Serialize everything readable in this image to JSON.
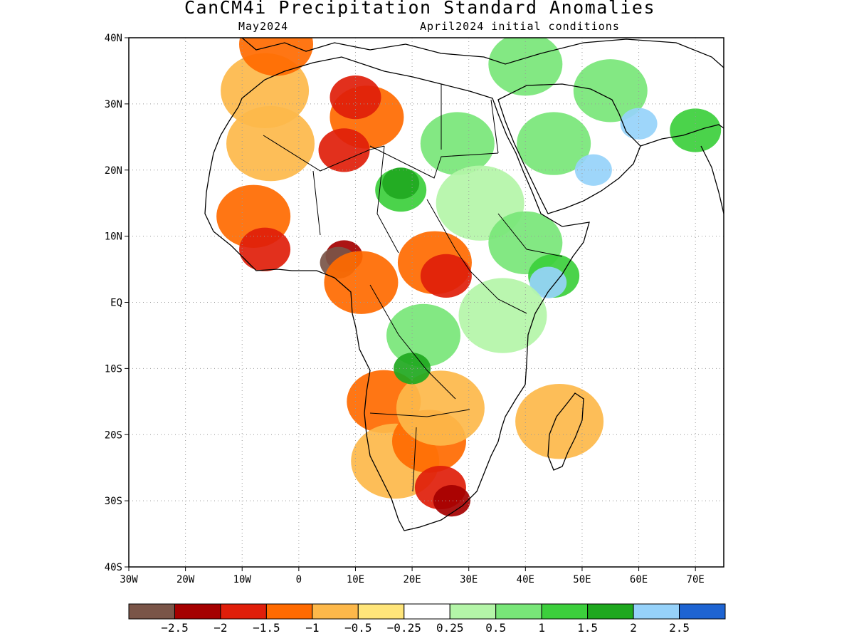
{
  "title": "CanCM4i Precipitation Standard Anomalies",
  "subtitle_left": "May2024",
  "subtitle_right": "April2024 initial conditions",
  "map": {
    "lon_range": [
      -30,
      75
    ],
    "lat_range": [
      -40,
      40
    ],
    "lat_ticks": [
      {
        "value": 40,
        "label": "40N"
      },
      {
        "value": 30,
        "label": "30N"
      },
      {
        "value": 20,
        "label": "20N"
      },
      {
        "value": 10,
        "label": "10N"
      },
      {
        "value": 0,
        "label": "EQ"
      },
      {
        "value": -10,
        "label": "10S"
      },
      {
        "value": -20,
        "label": "20S"
      },
      {
        "value": -30,
        "label": "30S"
      },
      {
        "value": -40,
        "label": "40S"
      }
    ],
    "lon_ticks": [
      {
        "value": -30,
        "label": "30W"
      },
      {
        "value": -20,
        "label": "20W"
      },
      {
        "value": -10,
        "label": "10W"
      },
      {
        "value": 0,
        "label": "0"
      },
      {
        "value": 10,
        "label": "10E"
      },
      {
        "value": 20,
        "label": "20E"
      },
      {
        "value": 30,
        "label": "30E"
      },
      {
        "value": 40,
        "label": "40E"
      },
      {
        "value": 50,
        "label": "50E"
      },
      {
        "value": 60,
        "label": "60E"
      },
      {
        "value": 70,
        "label": "70E"
      }
    ],
    "grid": "dotted"
  },
  "colorbar": {
    "colors": [
      "#7a5548",
      "#a50000",
      "#e01e0a",
      "#ff6a00",
      "#fdb84a",
      "#ffe57a",
      "#ffffff",
      "#b4f5a8",
      "#78e678",
      "#3ccf3c",
      "#1fa81f",
      "#96d2fa",
      "#1e64d2"
    ],
    "labels": [
      "-2.5",
      "-2",
      "-1.5",
      "-1",
      "-0.5",
      "-0.25",
      "0.25",
      "0.5",
      "1",
      "1.5",
      "2",
      "2.5"
    ]
  },
  "anomaly_regions": [
    {
      "name": "nw-sahara-dry",
      "lon": -5,
      "lat": 24,
      "level": -0.5
    },
    {
      "name": "morocco-dry",
      "lon": -6,
      "lat": 32,
      "level": -0.5
    },
    {
      "name": "iberia-north-dry",
      "lon": -4,
      "lat": 39,
      "level": -1
    },
    {
      "name": "libya-dry",
      "lon": 12,
      "lat": 28,
      "level": -1
    },
    {
      "name": "libya-core-dry",
      "lon": 10,
      "lat": 31,
      "level": -1.5
    },
    {
      "name": "niger-dry",
      "lon": 8,
      "lat": 23,
      "level": -1.5
    },
    {
      "name": "west-africa-dry",
      "lon": -8,
      "lat": 13,
      "level": -1
    },
    {
      "name": "guinea-coast-dry",
      "lon": -6,
      "lat": 8,
      "level": -1.5
    },
    {
      "name": "nigeria-dry",
      "lon": 8,
      "lat": 7,
      "level": -2
    },
    {
      "name": "niger-delta-very-dry",
      "lon": 7,
      "lat": 6,
      "level": -2.5
    },
    {
      "name": "cameroon-dry",
      "lon": 11,
      "lat": 3,
      "level": -1
    },
    {
      "name": "car-dry",
      "lon": 24,
      "lat": 6,
      "level": -1
    },
    {
      "name": "car-core-dry",
      "lon": 26,
      "lat": 4,
      "level": -1.5
    },
    {
      "name": "angola-dry",
      "lon": 15,
      "lat": -15,
      "level": -1
    },
    {
      "name": "namibia-dry",
      "lon": 17,
      "lat": -24,
      "level": -0.5
    },
    {
      "name": "botswana-dry",
      "lon": 23,
      "lat": -21,
      "level": -1
    },
    {
      "name": "south-africa-dry",
      "lon": 25,
      "lat": -28,
      "level": -1.5
    },
    {
      "name": "south-africa-core-dry",
      "lon": 27,
      "lat": -30,
      "level": -2
    },
    {
      "name": "zambia-dry",
      "lon": 25,
      "lat": -16,
      "level": -0.5
    },
    {
      "name": "egypt-sudan-wet",
      "lon": 28,
      "lat": 24,
      "level": 1
    },
    {
      "name": "chad-wet",
      "lon": 18,
      "lat": 17,
      "level": 1.5
    },
    {
      "name": "chad-core-wet",
      "lon": 18,
      "lat": 18,
      "level": 2
    },
    {
      "name": "sudan-wet",
      "lon": 32,
      "lat": 15,
      "level": 0.5
    },
    {
      "name": "ethiopia-wet",
      "lon": 40,
      "lat": 9,
      "level": 1
    },
    {
      "name": "somalia-wet",
      "lon": 45,
      "lat": 4,
      "level": 1.5
    },
    {
      "name": "somalia-core-wet",
      "lon": 44,
      "lat": 3,
      "level": 2.5
    },
    {
      "name": "east-africa-wet",
      "lon": 36,
      "lat": -2,
      "level": 0.5
    },
    {
      "name": "drc-wet",
      "lon": 22,
      "lat": -5,
      "level": 1
    },
    {
      "name": "angola-core-wet",
      "lon": 20,
      "lat": -10,
      "level": 2
    },
    {
      "name": "arabia-wet",
      "lon": 45,
      "lat": 24,
      "level": 1
    },
    {
      "name": "yemen-oman-very-wet",
      "lon": 52,
      "lat": 20,
      "level": 2.5
    },
    {
      "name": "iran-wet",
      "lon": 55,
      "lat": 32,
      "level": 1
    },
    {
      "name": "pakistan-very-wet",
      "lon": 60,
      "lat": 27,
      "level": 2.5
    },
    {
      "name": "india-wet",
      "lon": 70,
      "lat": 26,
      "level": 1.5
    },
    {
      "name": "turkey-wet",
      "lon": 40,
      "lat": 36,
      "level": 1
    },
    {
      "name": "madagascar-dry",
      "lon": 46,
      "lat": -18,
      "level": -0.5
    }
  ]
}
